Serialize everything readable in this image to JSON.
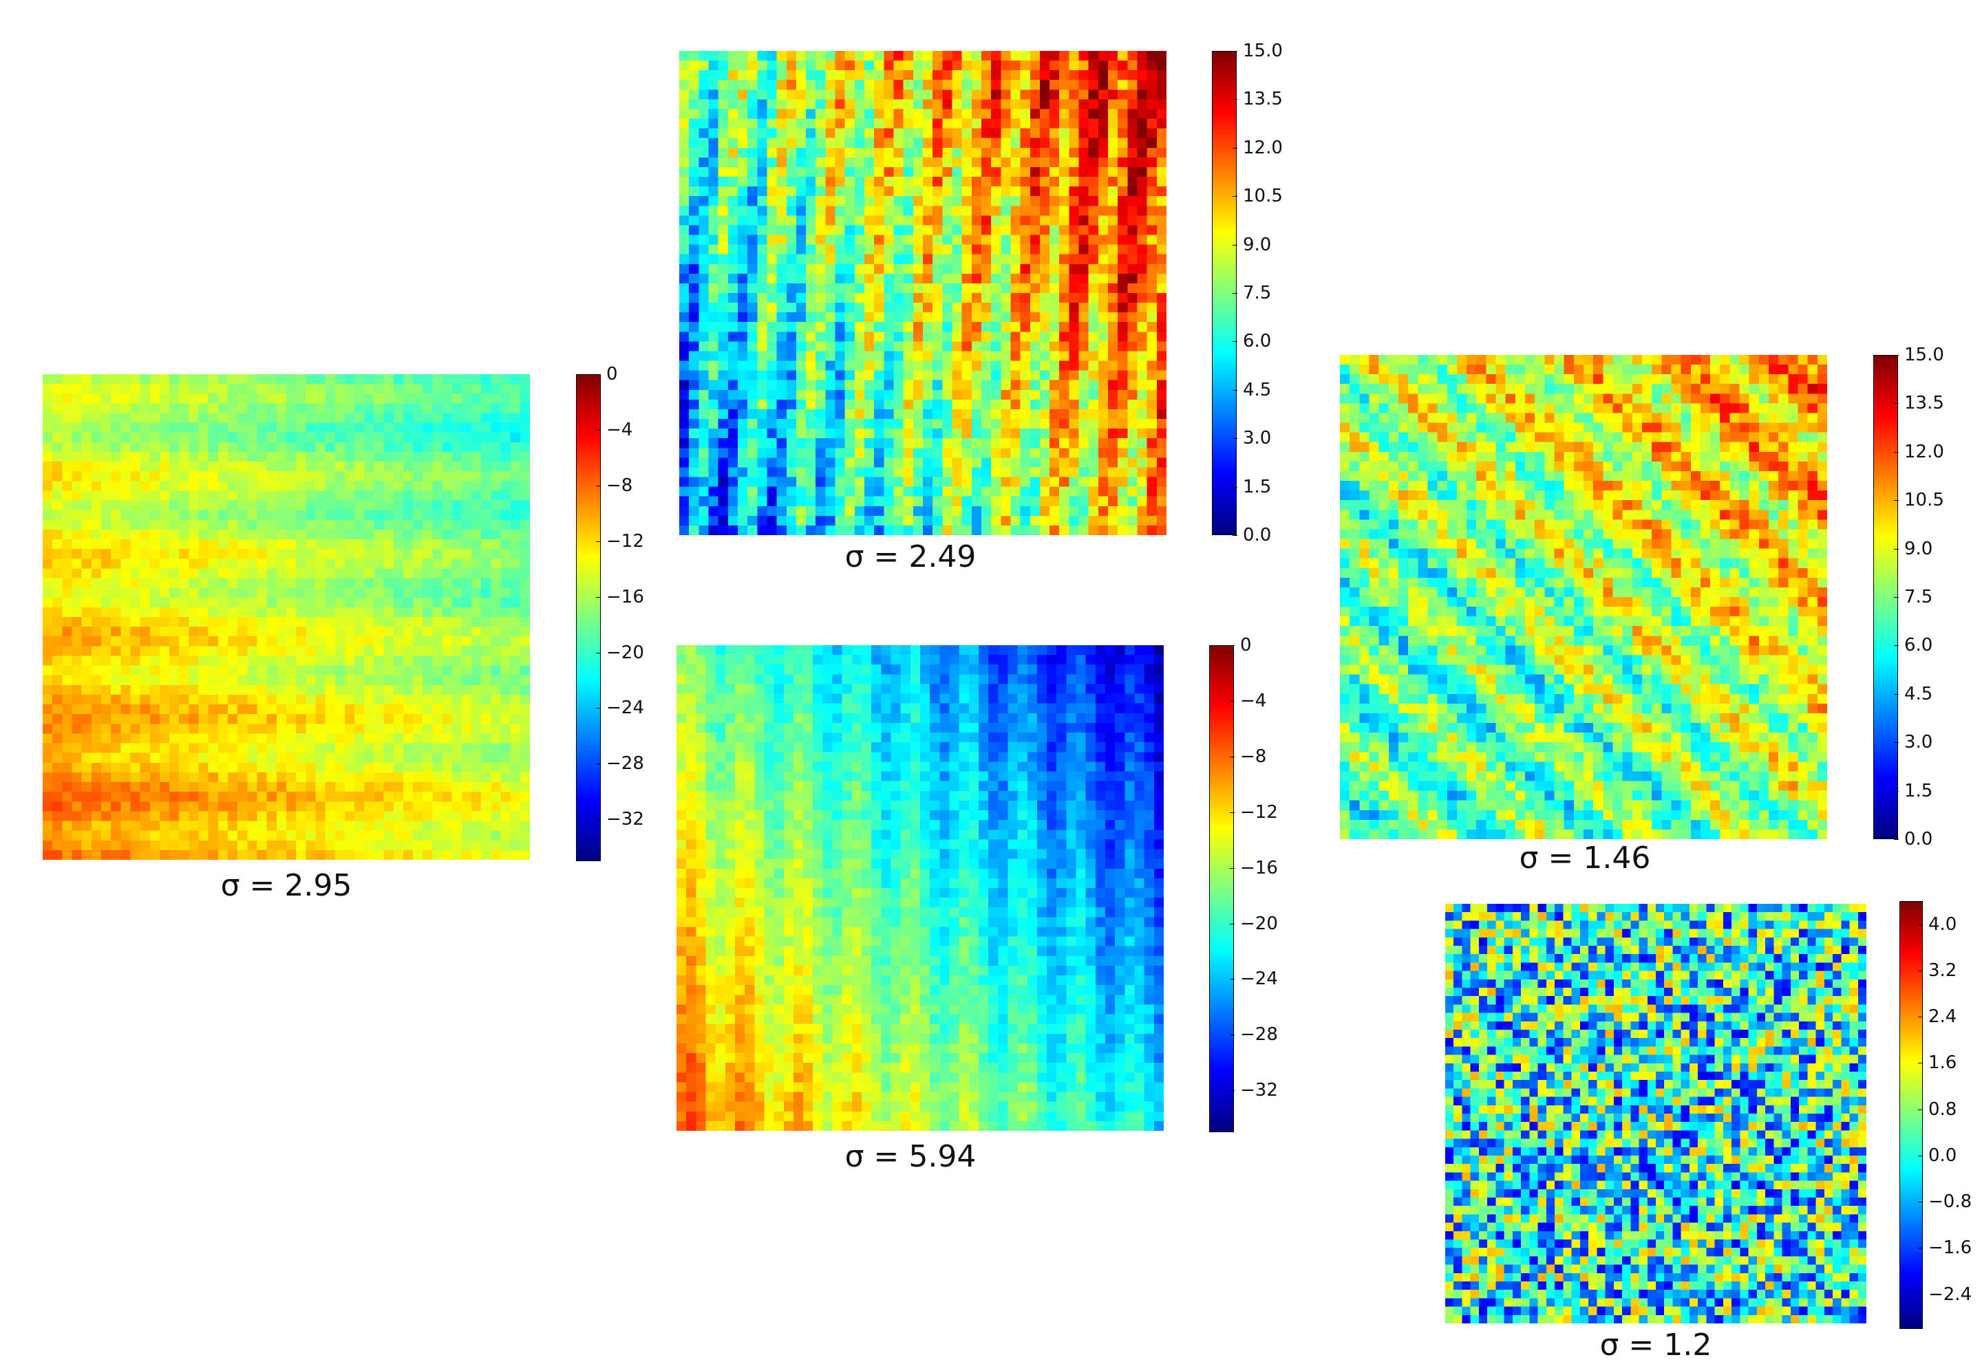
{
  "colormap": "jet",
  "colors": {
    "jet_stops": [
      "#00007f",
      "#0000ff",
      "#007fff",
      "#00ffff",
      "#7fff7f",
      "#ffff00",
      "#ff7f00",
      "#ff0000",
      "#7f0000"
    ]
  },
  "chart_data": [
    {
      "type": "heatmap",
      "caption": "σ = 2.95",
      "pattern": "values rise from about -21 at top-right to about -8 at bottom-left; horizontal banding",
      "clim": [
        -35,
        0
      ],
      "colorbar_ticks": [
        "0",
        "−4",
        "−8",
        "−12",
        "−16",
        "−20",
        "−24",
        "−28",
        "−32"
      ],
      "colorbar_tick_values": [
        0,
        -4,
        -8,
        -12,
        -16,
        -20,
        -24,
        -28,
        -32
      ]
    },
    {
      "type": "heatmap",
      "caption": "σ = 2.49",
      "pattern": "values rise from about 3 at bottom-left to about 14 at top-right; vertical streaks",
      "clim": [
        0,
        15
      ],
      "colorbar_ticks": [
        "15.0",
        "13.5",
        "12.0",
        "10.5",
        "9.0",
        "7.5",
        "6.0",
        "4.5",
        "3.0",
        "1.5",
        "0.0"
      ],
      "colorbar_tick_values": [
        15,
        13.5,
        12,
        10.5,
        9,
        7.5,
        6,
        4.5,
        3,
        1.5,
        0
      ]
    },
    {
      "type": "heatmap",
      "caption": "σ = 5.94",
      "pattern": "values fall from about -8 at bottom-left to about -32 at top-right; vertical streaks",
      "clim": [
        -35,
        0
      ],
      "colorbar_ticks": [
        "0",
        "−4",
        "−8",
        "−12",
        "−16",
        "−20",
        "−24",
        "−28",
        "−32"
      ],
      "colorbar_tick_values": [
        0,
        -4,
        -8,
        -12,
        -16,
        -20,
        -24,
        -28,
        -32
      ]
    },
    {
      "type": "heatmap",
      "caption": "σ = 1.46",
      "pattern": "mostly 6 to 9 with warmer diagonal bands near the top-right up to about 12",
      "clim": [
        0,
        15
      ],
      "colorbar_ticks": [
        "15.0",
        "13.5",
        "12.0",
        "10.5",
        "9.0",
        "7.5",
        "6.0",
        "4.5",
        "3.0",
        "1.5",
        "0.0"
      ],
      "colorbar_tick_values": [
        15,
        13.5,
        12,
        10.5,
        9,
        7.5,
        6,
        4.5,
        3,
        1.5,
        0
      ]
    },
    {
      "type": "heatmap",
      "caption": "σ = 1.2",
      "pattern": "fine-grained noise centered near 0.0",
      "clim": [
        -3.0,
        4.4
      ],
      "colorbar_ticks": [
        "4.0",
        "3.2",
        "2.4",
        "1.6",
        "0.8",
        "0.0",
        "−0.8",
        "−1.6",
        "−2.4"
      ],
      "colorbar_tick_values": [
        4,
        3.2,
        2.4,
        1.6,
        0.8,
        0,
        -0.8,
        -1.6,
        -2.4
      ]
    }
  ]
}
